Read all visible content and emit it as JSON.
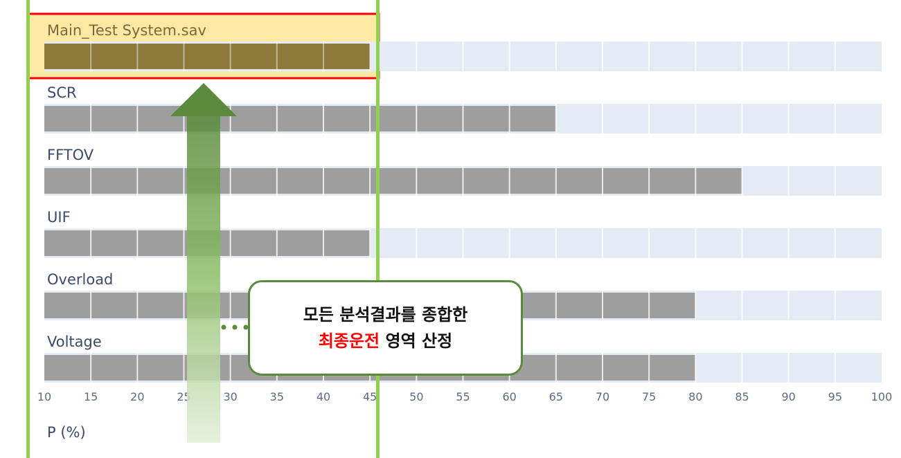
{
  "chart_data": {
    "type": "bar",
    "orientation": "horizontal",
    "categories": [
      "Main_Test System.sav",
      "SCR",
      "FFTOV",
      "UIF",
      "Overload",
      "Voltage"
    ],
    "values": [
      45,
      65,
      85,
      45,
      80,
      80
    ],
    "xlabel": "P (%)",
    "xlim": [
      10,
      100
    ],
    "xticks": [
      10,
      15,
      20,
      25,
      30,
      35,
      40,
      45,
      50,
      55,
      60,
      65,
      70,
      75,
      80,
      85,
      90,
      95,
      100
    ],
    "grid": true,
    "highlighted_category": "Main_Test System.sav",
    "colors": {
      "bar": "#9e9e9e",
      "highlight_bar": "#8d7a3a",
      "track": "#e5ebf5",
      "highlight_fill": "#fde9a3",
      "highlight_border": "#ff0000",
      "guide_line": "#92d050",
      "arrow": "#5b8a3c",
      "tick_text": "#5a6b85"
    }
  },
  "annotation": {
    "line1": "모든 분석결과를 종합한",
    "line2_highlight": "최종운전",
    "line2_rest": " 영역 산정"
  }
}
